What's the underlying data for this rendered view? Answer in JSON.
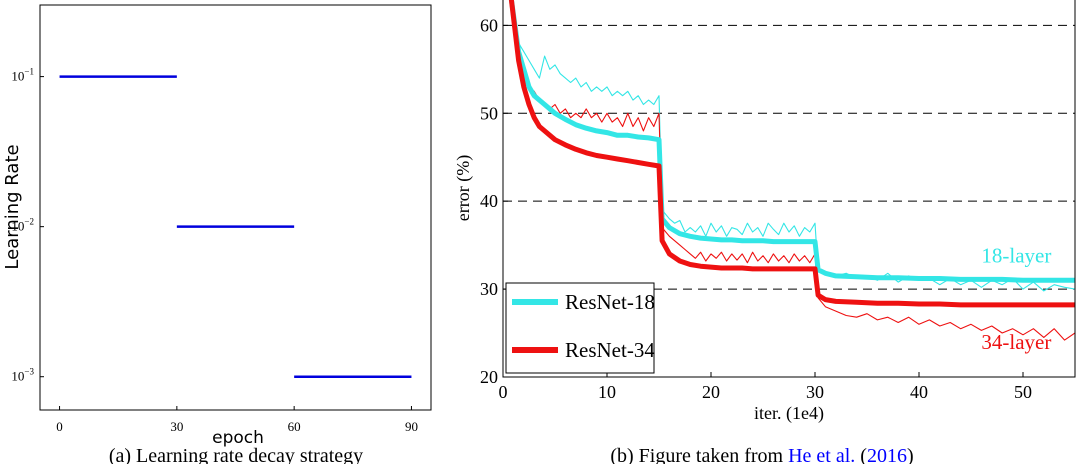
{
  "chart_data": [
    {
      "type": "line",
      "xlabel": "epoch",
      "ylabel": "Learning Rate",
      "yscale": "log",
      "xlim": [
        -5,
        95
      ],
      "ylim": [
        0.0006,
        0.3
      ],
      "xticks": [
        0,
        30,
        60,
        90
      ],
      "yticks": [
        {
          "value": 0.1,
          "base": "10",
          "exp": "−1"
        },
        {
          "value": 0.01,
          "base": "10",
          "exp": "−2"
        },
        {
          "value": 0.001,
          "base": "10",
          "exp": "−3"
        }
      ],
      "color": "#0000dd",
      "series": [
        {
          "x": [
            0,
            30
          ],
          "y": [
            0.1,
            0.1
          ]
        },
        {
          "x": [
            30,
            60
          ],
          "y": [
            0.01,
            0.01
          ]
        },
        {
          "x": [
            60,
            90
          ],
          "y": [
            0.001,
            0.001
          ]
        }
      ],
      "caption": {
        "prefix": "(a)  Learning rate decay strategy"
      }
    },
    {
      "type": "line",
      "xlabel": "iter. (1e4)",
      "ylabel": "error (%)",
      "xlim": [
        0,
        55
      ],
      "ylim": [
        20,
        63
      ],
      "xticks": [
        0,
        10,
        20,
        30,
        40,
        50
      ],
      "yticks": [
        20,
        30,
        40,
        50,
        60
      ],
      "gridlines_y": [
        30,
        40,
        50,
        60
      ],
      "grid": "horizontal dashed",
      "legend": {
        "placement": "bottom-left",
        "entries": [
          "ResNet-18",
          "ResNet-34"
        ]
      },
      "annotations": [
        {
          "text": "18-layer",
          "x": 46,
          "y": 33,
          "color": "#33e6e6"
        },
        {
          "text": "34-layer",
          "x": 46,
          "y": 23.2,
          "color": "#ee1111"
        }
      ],
      "series": [
        {
          "name": "ResNet-18",
          "kind": "train",
          "color": "#33e6e6",
          "x": [
            0.8,
            1.5,
            2,
            2.5,
            3,
            3.5,
            4,
            5,
            6,
            7,
            8,
            9,
            10,
            11,
            12,
            13,
            14,
            15,
            15.3,
            16,
            17,
            18,
            19,
            20,
            21,
            22,
            23,
            24,
            25,
            26,
            27,
            28,
            29,
            30,
            30.3,
            31,
            32,
            34,
            36,
            38,
            40,
            42,
            44,
            46,
            48,
            50,
            52,
            54,
            55
          ],
          "y": [
            63,
            57,
            55,
            53,
            52,
            51.5,
            51,
            50,
            49.3,
            48.7,
            48.3,
            48,
            47.8,
            47.5,
            47.5,
            47.3,
            47.2,
            47,
            38,
            37,
            36.3,
            36,
            35.8,
            35.7,
            35.6,
            35.6,
            35.5,
            35.5,
            35.5,
            35.4,
            35.4,
            35.4,
            35.4,
            35.4,
            32.2,
            31.8,
            31.5,
            31.4,
            31.3,
            31.3,
            31.2,
            31.2,
            31.1,
            31.1,
            31.1,
            31,
            31,
            31,
            31
          ]
        },
        {
          "name": "ResNet-34",
          "kind": "train",
          "color": "#ee1111",
          "x": [
            0.8,
            1.5,
            2,
            2.5,
            3,
            3.5,
            4,
            5,
            6,
            7,
            8,
            9,
            10,
            11,
            12,
            13,
            14,
            15,
            15.3,
            16,
            17,
            18,
            19,
            20,
            21,
            22,
            23,
            24,
            25,
            26,
            27,
            28,
            29,
            30,
            30.3,
            31,
            32,
            34,
            36,
            38,
            40,
            42,
            44,
            46,
            48,
            50,
            52,
            54,
            55
          ],
          "y": [
            63,
            56,
            53,
            51,
            49.5,
            48.5,
            48,
            47,
            46.4,
            45.9,
            45.5,
            45.2,
            45,
            44.8,
            44.6,
            44.4,
            44.2,
            44,
            35.5,
            34,
            33.2,
            32.8,
            32.6,
            32.5,
            32.4,
            32.4,
            32.4,
            32.3,
            32.3,
            32.3,
            32.3,
            32.3,
            32.3,
            32.3,
            29.3,
            28.8,
            28.6,
            28.5,
            28.4,
            28.4,
            28.3,
            28.3,
            28.2,
            28.2,
            28.2,
            28.2,
            28.2,
            28.2,
            28.2
          ]
        },
        {
          "name": "ResNet-18",
          "kind": "val",
          "color": "#33e6e6",
          "x": [
            1,
            1.5,
            2,
            2.5,
            3,
            3.5,
            4,
            4.5,
            5,
            5.5,
            6,
            6.5,
            7,
            7.5,
            8,
            8.5,
            9,
            9.5,
            10,
            10.5,
            11,
            11.5,
            12,
            12.5,
            13,
            13.5,
            14,
            14.5,
            15,
            15.3,
            16,
            16.5,
            17,
            17.5,
            18,
            18.5,
            19,
            19.5,
            20,
            20.5,
            21,
            21.5,
            22,
            22.5,
            23,
            23.5,
            24,
            24.5,
            25,
            25.5,
            26,
            26.5,
            27,
            27.5,
            28,
            28.5,
            29,
            29.5,
            30,
            30.3,
            31,
            32,
            33,
            34,
            35,
            36,
            37,
            38,
            39,
            40,
            41,
            42,
            43,
            44,
            45,
            46,
            47,
            48,
            49,
            50,
            51,
            52,
            53,
            54,
            55
          ],
          "y": [
            62,
            58,
            57,
            56,
            55,
            54,
            56.5,
            55,
            55.5,
            54.5,
            54,
            53.5,
            54,
            53,
            53.5,
            52.5,
            53,
            52.5,
            53,
            52,
            52.5,
            52,
            52.5,
            51.5,
            52,
            51,
            51.5,
            51,
            52,
            39,
            38,
            37.5,
            37.8,
            36.5,
            37,
            36.5,
            37.2,
            36,
            37.5,
            36.5,
            37.2,
            36,
            37,
            36.8,
            36.2,
            37.5,
            36.5,
            37,
            36,
            37.5,
            36.8,
            36.2,
            37.5,
            36.5,
            37.2,
            36,
            37,
            36.5,
            37.5,
            32,
            32,
            31.5,
            31.8,
            31.2,
            31.5,
            31,
            31.8,
            30.8,
            31.5,
            31,
            31.2,
            30.5,
            31.2,
            30.5,
            31,
            30.2,
            31,
            30.5,
            31.2,
            30,
            30.8,
            29.8,
            30.5,
            30.2,
            30
          ]
        },
        {
          "name": "ResNet-34",
          "kind": "val",
          "color": "#ee1111",
          "x": [
            1,
            1.5,
            2,
            2.5,
            3,
            3.5,
            4,
            4.5,
            5,
            5.5,
            6,
            6.5,
            7,
            7.5,
            8,
            8.5,
            9,
            9.5,
            10,
            10.5,
            11,
            11.5,
            12,
            12.5,
            13,
            13.5,
            14,
            14.5,
            15,
            15.3,
            16,
            16.5,
            17,
            17.5,
            18,
            18.5,
            19,
            19.5,
            20,
            20.5,
            21,
            21.5,
            22,
            22.5,
            23,
            23.5,
            24,
            24.5,
            25,
            25.5,
            26,
            26.5,
            27,
            27.5,
            28,
            28.5,
            29,
            29.5,
            30,
            30.3,
            31,
            32,
            33,
            34,
            35,
            36,
            37,
            38,
            39,
            40,
            41,
            42,
            43,
            44,
            45,
            46,
            47,
            48,
            49,
            50,
            51,
            52,
            53,
            54,
            55
          ],
          "y": [
            61,
            56,
            54,
            53,
            52.5,
            51.5,
            51,
            50.5,
            51,
            50,
            50.5,
            49.5,
            50,
            49.5,
            50.5,
            49.5,
            50,
            49,
            50,
            49,
            49.5,
            48.5,
            50,
            48.5,
            49.5,
            48,
            49.5,
            48.5,
            50,
            37,
            36,
            35.5,
            35,
            34.5,
            34,
            33.5,
            34.2,
            33.2,
            34,
            33.5,
            34.2,
            33.2,
            34,
            33.3,
            34,
            33,
            34.2,
            33.2,
            33.8,
            33,
            34,
            33.2,
            33.8,
            33,
            34,
            33.2,
            33.8,
            33,
            34,
            29,
            28,
            27.5,
            27,
            26.8,
            27.2,
            26.5,
            26.8,
            26.2,
            26.8,
            26,
            26.5,
            25.8,
            26.2,
            25.5,
            26,
            25.3,
            25.8,
            25,
            25.5,
            24.8,
            25.5,
            24.5,
            25.5,
            24.2,
            25
          ]
        }
      ],
      "caption": {
        "prefix": "(b)  Figure taken from ",
        "author": "He et al.",
        "open": " (",
        "year": "2016",
        "close": ")"
      }
    }
  ]
}
